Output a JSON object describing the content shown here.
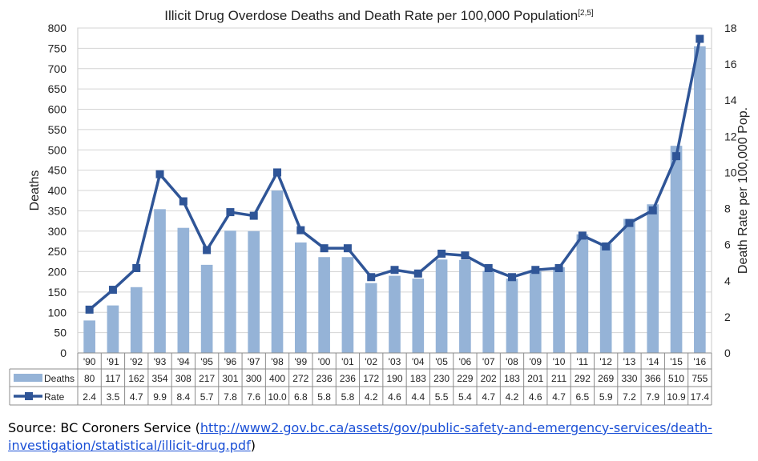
{
  "chart_data": {
    "type": "bar+line",
    "title": "Illicit Drug Overdose Deaths and Death Rate per 100,000 Population",
    "title_superscript": "[2,5]",
    "categories": [
      "'90",
      "'91",
      "'92",
      "'93",
      "'94",
      "'95",
      "'96",
      "'97",
      "'98",
      "'99",
      "'00",
      "'01",
      "'02",
      "'03",
      "'04",
      "'05",
      "'06",
      "'07",
      "'08",
      "'09",
      "'10",
      "'11",
      "'12",
      "'13",
      "'14",
      "'15",
      "'16"
    ],
    "series": [
      {
        "name": "Deaths",
        "type": "bar",
        "axis": "left",
        "color": "#95b3d7",
        "values": [
          80,
          117,
          162,
          354,
          308,
          217,
          301,
          300,
          400,
          272,
          236,
          236,
          172,
          190,
          183,
          230,
          229,
          202,
          183,
          201,
          211,
          292,
          269,
          330,
          366,
          510,
          755
        ]
      },
      {
        "name": "Rate",
        "type": "line",
        "axis": "right",
        "color": "#2f5597",
        "values": [
          "2.4",
          "3.5",
          "4.7",
          "9.9",
          "8.4",
          "5.7",
          "7.8",
          "7.6",
          "10.0",
          "6.8",
          "5.8",
          "5.8",
          "4.2",
          "4.6",
          "4.4",
          "5.5",
          "5.4",
          "4.7",
          "4.2",
          "4.6",
          "4.7",
          "6.5",
          "5.9",
          "7.2",
          "7.9",
          "10.9",
          "17.4"
        ]
      }
    ],
    "ylabel_left": "Deaths",
    "ylabel_right": "Death Rate per 100,000 Pop.",
    "ylim_left": [
      0,
      800
    ],
    "yticks_left": [
      "0",
      "50",
      "100",
      "150",
      "200",
      "250",
      "300",
      "350",
      "400",
      "450",
      "500",
      "550",
      "600",
      "650",
      "700",
      "750",
      "800"
    ],
    "ylim_right": [
      0,
      18
    ],
    "yticks_right": [
      "0",
      "2",
      "4",
      "6",
      "8",
      "10",
      "12",
      "14",
      "16",
      "18"
    ],
    "grid": true,
    "legend": "data-table-below"
  },
  "source": {
    "prefix": "Source: BC Coroners Service (",
    "link_line1": "http://www2.gov.bc.ca/assets/gov/public-safety-and-emergency-services/death-",
    "link_line2": "investigation/statistical/illicit-drug.pdf",
    "suffix": ")"
  }
}
